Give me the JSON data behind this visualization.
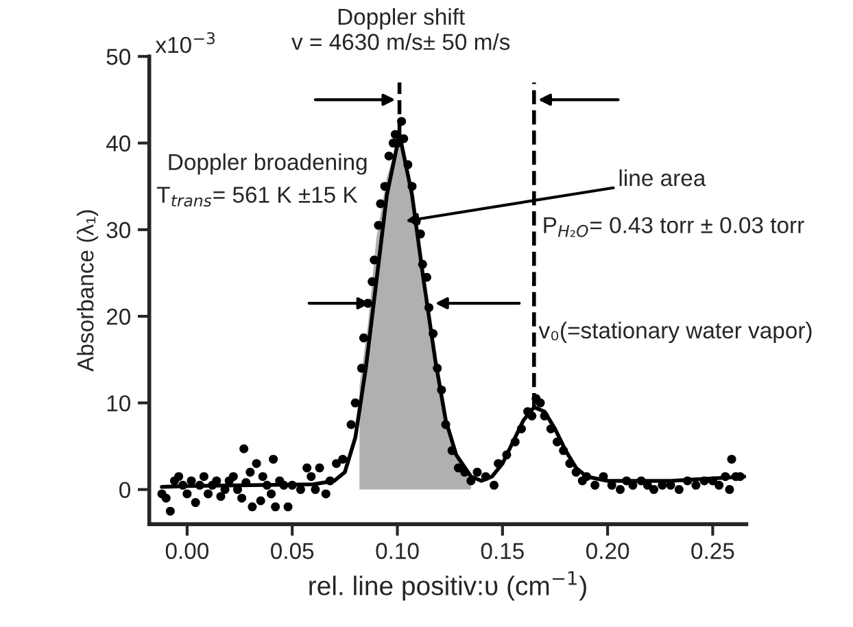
{
  "chart_data": {
    "type": "scatter",
    "xlabel": "rel. line positiv:υ (cm$^{−1}$)",
    "ylabel": "Absorbance (λ₁)",
    "xlim": [
      -0.018,
      0.266
    ],
    "ylim": [
      -4,
      50
    ],
    "xticks": [
      {
        "value": 0,
        "label": "0.00"
      },
      0.05,
      {
        "value": 0.1,
        "label": "0.10"
      },
      0.15,
      {
        "value": 0.2,
        "label": "0.20"
      },
      0.25
    ],
    "yticks": [
      0,
      10,
      20,
      30,
      40,
      50
    ],
    "grid": false,
    "series": [
      {
        "type": "area",
        "color": "#b0b0b0",
        "x": [
          0.082,
          0.086,
          0.09,
          0.095,
          0.101,
          0.106,
          0.111,
          0.116,
          0.121,
          0.126,
          0.131,
          0.135
        ],
        "values": [
          12,
          19,
          29,
          36,
          41,
          35,
          27,
          19,
          11,
          5.5,
          2.5,
          1.5
        ]
      },
      {
        "type": "line",
        "color": "#000000",
        "line_style": "solid",
        "marker": "none",
        "x": [
          -0.012,
          0.0,
          0.03,
          0.06,
          0.07,
          0.075,
          0.08,
          0.085,
          0.09,
          0.095,
          0.101,
          0.107,
          0.112,
          0.118,
          0.123,
          0.128,
          0.135,
          0.14,
          0.145,
          0.15,
          0.155,
          0.16,
          0.165,
          0.17,
          0.175,
          0.18,
          0.185,
          0.19,
          0.2,
          0.23,
          0.265
        ],
        "values": [
          0.3,
          0.4,
          0.5,
          0.6,
          1.0,
          2.0,
          6,
          14,
          24,
          34,
          41,
          34,
          25,
          15,
          8,
          4,
          1.5,
          1,
          1.5,
          3,
          5.5,
          8,
          9.5,
          9,
          7,
          4.5,
          2.5,
          1.5,
          1,
          1,
          1.5
        ]
      },
      {
        "color": "#000000",
        "marker": "circle",
        "x": [
          -0.012,
          -0.01,
          -0.008,
          -0.006,
          -0.004,
          -0.002,
          0.0,
          0.002,
          0.004,
          0.006,
          0.008,
          0.01,
          0.012,
          0.014,
          0.016,
          0.018,
          0.02,
          0.022,
          0.024,
          0.026,
          0.027,
          0.028,
          0.03,
          0.031,
          0.033,
          0.035,
          0.036,
          0.038,
          0.04,
          0.041,
          0.042,
          0.044,
          0.046,
          0.048,
          0.05,
          0.054,
          0.057,
          0.059,
          0.061,
          0.063,
          0.066,
          0.068,
          0.071,
          0.074,
          0.078,
          0.08,
          0.083,
          0.084,
          0.086,
          0.088,
          0.089,
          0.091,
          0.092,
          0.094,
          0.096,
          0.098,
          0.099,
          0.1,
          0.102,
          0.103,
          0.105,
          0.107,
          0.109,
          0.111,
          0.112,
          0.114,
          0.115,
          0.117,
          0.119,
          0.121,
          0.123,
          0.126,
          0.129,
          0.132,
          0.135,
          0.138,
          0.142,
          0.146,
          0.148,
          0.152,
          0.156,
          0.159,
          0.162,
          0.164,
          0.166,
          0.168,
          0.17,
          0.173,
          0.176,
          0.179,
          0.182,
          0.185,
          0.188,
          0.19,
          0.194,
          0.198,
          0.202,
          0.206,
          0.209,
          0.212,
          0.216,
          0.219,
          0.222,
          0.226,
          0.23,
          0.234,
          0.238,
          0.242,
          0.246,
          0.25,
          0.253,
          0.256,
          0.258,
          0.259,
          0.261,
          0.263
        ],
        "values": [
          -0.5,
          -1.0,
          -2.5,
          1.0,
          1.5,
          0.5,
          -0.5,
          1.0,
          -1.5,
          0.5,
          1.5,
          -0.5,
          0.5,
          1.0,
          -0.8,
          0.0,
          1.0,
          1.5,
          0.0,
          -1.0,
          4.7,
          0.8,
          2.0,
          -2.0,
          3.0,
          -1.3,
          1.5,
          0.5,
          -0.5,
          3.5,
          -2.0,
          1.0,
          0.5,
          -2.0,
          0.5,
          0.0,
          2.5,
          1.5,
          0.0,
          2.5,
          -0.5,
          1.0,
          3.0,
          3.5,
          7.5,
          10.0,
          14.0,
          17.5,
          21.5,
          24.0,
          26.5,
          30.5,
          33.0,
          35.0,
          38.5,
          40.0,
          41.0,
          40.0,
          42.5,
          40.5,
          37.5,
          35.0,
          31.0,
          29.5,
          26.0,
          24.5,
          21.0,
          18.0,
          14.0,
          11.5,
          7.5,
          4.5,
          2.5,
          2.0,
          1.0,
          2.0,
          1.5,
          0.5,
          3.0,
          4.0,
          5.5,
          7.0,
          9.0,
          8.5,
          10.5,
          10.0,
          8.5,
          7.0,
          5.5,
          4.5,
          3.0,
          2.0,
          1.0,
          1.5,
          0.5,
          1.5,
          0.5,
          0.0,
          1.0,
          0.5,
          1.0,
          0.5,
          0.0,
          0.5,
          0.5,
          0.0,
          1.0,
          0.5,
          1.0,
          1.0,
          0.5,
          1.5,
          0.0,
          3.5,
          1.5,
          1.5
        ]
      }
    ],
    "ref_lines": [
      {
        "axis": "x",
        "value": 0.101,
        "color": "#000000",
        "line_style": "dashed"
      },
      {
        "axis": "x",
        "value": 0.165,
        "color": "#000000",
        "line_style": "dashed"
      }
    ],
    "annotations": [
      "Doppler shift",
      "v = 4630 m/s± 50 m/s",
      "Doppler broadening",
      "T$_{trans}$= 561 K ±15 K",
      {
        "text": "line area",
        "x": 0.104,
        "y": 31
      },
      "P$_{H₂O}$= 0.43 torr ± 0.03 torr",
      "v₀(=stationary water vapor)",
      "x10$^{−3}$"
    ]
  }
}
